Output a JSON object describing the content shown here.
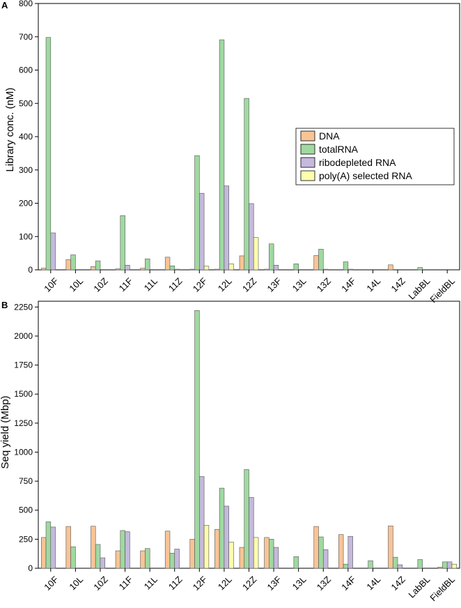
{
  "chart_data": [
    {
      "panel_label": "A",
      "type": "bar",
      "title": "",
      "xlabel": "",
      "ylabel": "Library conc. (nM)",
      "ylim": [
        0,
        800
      ],
      "yticks": [
        0,
        100,
        200,
        300,
        400,
        500,
        600,
        700,
        800
      ],
      "grid": false,
      "legend_position": "right",
      "categories": [
        "10F",
        "10L",
        "10Z",
        "11F",
        "11L",
        "11Z",
        "12F",
        "12L",
        "12Z",
        "13F",
        "13L",
        "13Z",
        "14F",
        "14L",
        "14Z",
        "LabBL",
        "FieldBL"
      ],
      "series": [
        {
          "name": "DNA",
          "color": "#f7c496",
          "values": [
            5,
            31,
            10,
            3,
            5,
            38,
            2,
            2,
            42,
            2,
            0,
            43,
            0,
            0,
            15,
            0,
            0
          ]
        },
        {
          "name": "totalRNA",
          "color": "#9fd9a0",
          "values": [
            698,
            45,
            27,
            163,
            33,
            12,
            343,
            691,
            515,
            78,
            18,
            62,
            24,
            0,
            0,
            7,
            0
          ]
        },
        {
          "name": "ribodepleted RNA",
          "color": "#c5b9dd",
          "values": [
            111,
            0,
            0,
            14,
            0,
            2,
            230,
            252,
            199,
            14,
            0,
            2,
            2,
            0,
            0,
            0,
            0
          ]
        },
        {
          "name": "poly(A) selected RNA",
          "color": "#fefcad",
          "values": [
            0,
            0,
            0,
            0,
            0,
            0,
            11,
            18,
            97,
            0,
            0,
            0,
            0,
            0,
            0,
            0,
            0
          ]
        }
      ]
    },
    {
      "panel_label": "B",
      "type": "bar",
      "title": "",
      "xlabel": "",
      "ylabel": "Seq yield (Mbp)",
      "ylim": [
        0,
        2300
      ],
      "yticks": [
        0,
        250,
        500,
        750,
        1000,
        1250,
        1500,
        1750,
        2000,
        2250
      ],
      "grid": false,
      "categories": [
        "10F",
        "10L",
        "10Z",
        "11F",
        "11L",
        "11Z",
        "12F",
        "12L",
        "12Z",
        "13F",
        "13L",
        "13Z",
        "14F",
        "14L",
        "14Z",
        "LabBL",
        "FieldBL"
      ],
      "series": [
        {
          "name": "DNA",
          "color": "#f7c496",
          "values": [
            265,
            360,
            362,
            150,
            150,
            320,
            250,
            335,
            180,
            265,
            0,
            360,
            290,
            0,
            365,
            0,
            10
          ]
        },
        {
          "name": "totalRNA",
          "color": "#9fd9a0",
          "values": [
            400,
            185,
            205,
            325,
            170,
            130,
            2220,
            690,
            850,
            250,
            100,
            270,
            35,
            65,
            95,
            75,
            55
          ]
        },
        {
          "name": "ribodepleted RNA",
          "color": "#c5b9dd",
          "values": [
            355,
            0,
            90,
            315,
            0,
            165,
            790,
            535,
            610,
            180,
            0,
            160,
            275,
            0,
            30,
            0,
            55
          ]
        },
        {
          "name": "poly(A) selected RNA",
          "color": "#fefcad",
          "values": [
            0,
            0,
            0,
            0,
            0,
            0,
            370,
            225,
            265,
            0,
            0,
            0,
            0,
            0,
            0,
            0,
            35
          ]
        }
      ]
    }
  ]
}
